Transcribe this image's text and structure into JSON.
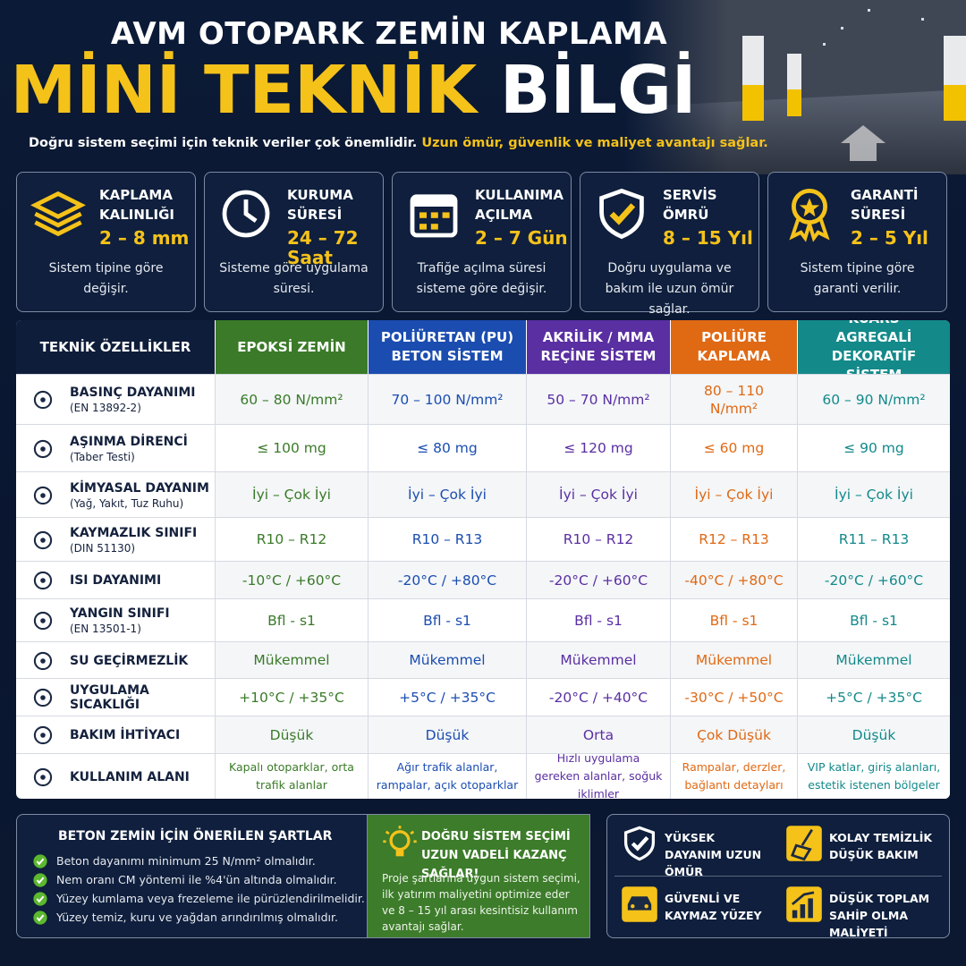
{
  "header": {
    "title_line1": "AVM OTOPARK ZEMİN KAPLAMA",
    "title_line2_highlight": "MİNİ TEKNİK",
    "title_line2_rest": "BİLGİ",
    "subtitle": "Doğru sistem seçimi için teknik veriler çok önemlidir.",
    "subtitle_highlight": "Uzun ömür, güvenlik ve maliyet avantajı sağlar."
  },
  "cards": [
    {
      "title": "KAPLAMA KALINLIĞI",
      "value": "2 – 8 mm",
      "note": "Sistem tipine göre değişir."
    },
    {
      "title": "KURUMA SÜRESİ",
      "value": "24 – 72 Saat",
      "note": "Sisteme göre uygulama süresi."
    },
    {
      "title": "KULLANIMA AÇILMA",
      "value": "2 – 7 Gün",
      "note": "Trafiğe açılma süresi sisteme göre değişir."
    },
    {
      "title": "SERVİS ÖMRÜ",
      "value": "8 – 15 Yıl",
      "note": "Doğru uygulama ve bakım ile uzun ömür sağlar."
    },
    {
      "title": "GARANTİ SÜRESİ",
      "value": "2 – 5 Yıl",
      "note": "Sistem tipine göre garanti verilir."
    }
  ],
  "table": {
    "corner": "TEKNİK ÖZELLİKLER",
    "columns": [
      {
        "name": "EPOKSİ ZEMİN",
        "color": "#3a7a28"
      },
      {
        "name": "POLİÜRETAN (PU) BETON SİSTEM",
        "color": "#1b4db0"
      },
      {
        "name": "AKRİLİK / MMA REÇİNE SİSTEM",
        "color": "#5a2fa2"
      },
      {
        "name": "POLİÜRE KAPLAMA",
        "color": "#e06914"
      },
      {
        "name": "KUARS AGREGALİ DEKORATİF SİSTEM",
        "color": "#13898a"
      }
    ],
    "rows": [
      {
        "label": "BASINÇ DAYANIMI",
        "sublabel": "(EN 13892-2)",
        "values": [
          "60 – 80 N/mm²",
          "70 – 100 N/mm²",
          "50 – 70 N/mm²",
          "80 – 110 N/mm²",
          "60 – 90 N/mm²"
        ]
      },
      {
        "label": "AŞINMA DİRENCİ",
        "sublabel": "(Taber Testi)",
        "values": [
          "≤ 100 mg",
          "≤ 80 mg",
          "≤ 120 mg",
          "≤ 60 mg",
          "≤ 90 mg"
        ]
      },
      {
        "label": "KİMYASAL DAYANIM",
        "sublabel": "(Yağ, Yakıt, Tuz Ruhu)",
        "values": [
          "İyi – Çok İyi",
          "İyi – Çok İyi",
          "İyi – Çok İyi",
          "İyi – Çok İyi",
          "İyi – Çok İyi"
        ]
      },
      {
        "label": "KAYMAZLIK SINIFI",
        "sublabel": "(DIN 51130)",
        "values": [
          "R10 – R12",
          "R10 – R13",
          "R10 – R12",
          "R12 – R13",
          "R11 – R13"
        ]
      },
      {
        "label": "ISI DAYANIMI",
        "values": [
          "-10°C / +60°C",
          "-20°C / +80°C",
          "-20°C / +60°C",
          "-40°C / +80°C",
          "-20°C / +60°C"
        ]
      },
      {
        "label": "YANGIN SINIFI",
        "sublabel": "(EN 13501-1)",
        "values": [
          "Bfl - s1",
          "Bfl - s1",
          "Bfl - s1",
          "Bfl - s1",
          "Bfl - s1"
        ]
      },
      {
        "label": "SU GEÇİRMEZLİK",
        "values": [
          "Mükemmel",
          "Mükemmel",
          "Mükemmel",
          "Mükemmel",
          "Mükemmel"
        ]
      },
      {
        "label": "UYGULAMA SICAKLIĞI",
        "values": [
          "+10°C / +35°C",
          "+5°C / +35°C",
          "-20°C / +40°C",
          "-30°C / +50°C",
          "+5°C / +35°C"
        ]
      },
      {
        "label": "BAKIM İHTİYACI",
        "values": [
          "Düşük",
          "Düşük",
          "Orta",
          "Çok Düşük",
          "Düşük"
        ]
      },
      {
        "label": "KULLANIM ALANI",
        "values": [
          "Kapalı otoparklar, orta trafik alanlar",
          "Ağır trafik alanlar, rampalar, açık otoparklar",
          "Hızlı uygulama gereken alanlar, soğuk iklimler",
          "Rampalar, derzler, bağlantı detayları",
          "VIP katlar, giriş alanları, estetik istenen bölgeler"
        ]
      }
    ]
  },
  "conditions": {
    "title": "BETON ZEMİN İÇİN ÖNERİLEN ŞARTLAR",
    "items": [
      "Beton dayanımı minimum 25 N/mm² olmalıdır.",
      "Nem oranı CM yöntemi ile %4'ün altında olmalıdır.",
      "Yüzey kumlama veya frezeleme ile pürüzlendirilmelidir.",
      "Yüzey temiz, kuru ve yağdan arındırılmış olmalıdır."
    ]
  },
  "tip": {
    "title": "DOĞRU SİSTEM SEÇİMİ UZUN VADELİ KAZANÇ SAĞLAR!",
    "text": "Proje şartlarına uygun sistem seçimi, ilk yatırım maliyetini optimize eder ve 8 – 15 yıl arası kesintisiz kullanım avantajı sağlar."
  },
  "benefits": [
    "YÜKSEK DAYANIM UZUN ÖMÜR",
    "KOLAY TEMİZLİK DÜŞÜK BAKIM",
    "GÜVENLİ VE KAYMAZ YÜZEY",
    "DÜŞÜK TOPLAM SAHİP OLMA MALİYETİ"
  ]
}
